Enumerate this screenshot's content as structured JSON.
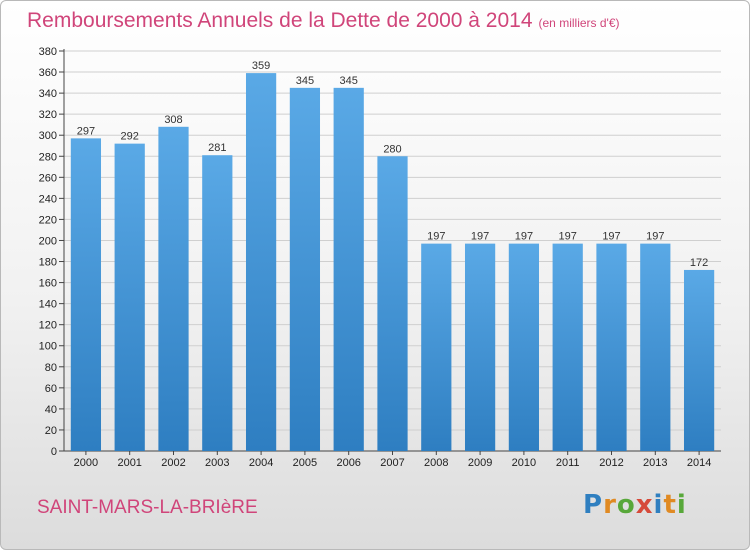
{
  "header": {
    "title": "Remboursements Annuels de la Dette de 2000 à 2014",
    "unit": "(en milliers d'€)"
  },
  "footer": {
    "city": "SAINT-MARS-LA-BRIèRE",
    "logo_letters": [
      "P",
      "r",
      "o",
      "x",
      "i",
      "t",
      "i"
    ],
    "logo_colors": [
      "#2f7fc0",
      "#e08a23",
      "#58a83a",
      "#d64a3a",
      "#2f7fc0",
      "#e08a23",
      "#58a83a"
    ]
  },
  "colors": {
    "bar": "#5aa9e6",
    "bar_dark": "#2e7ec1",
    "grid": "#cfcfcf",
    "accent": "#d0457a"
  },
  "chart_data": {
    "type": "bar",
    "title": "Remboursements Annuels de la Dette de 2000 à 2014",
    "xlabel": "",
    "ylabel": "",
    "categories": [
      "2000",
      "2001",
      "2002",
      "2003",
      "2004",
      "2005",
      "2006",
      "2007",
      "2008",
      "2009",
      "2010",
      "2011",
      "2012",
      "2013",
      "2014"
    ],
    "values": [
      297,
      292,
      308,
      281,
      359,
      345,
      345,
      280,
      197,
      197,
      197,
      197,
      197,
      197,
      172
    ],
    "ylim": [
      0,
      380
    ],
    "yticks": [
      0,
      20,
      40,
      60,
      80,
      100,
      120,
      140,
      160,
      180,
      200,
      220,
      240,
      260,
      280,
      300,
      320,
      340,
      360,
      380
    ],
    "grid": true
  }
}
